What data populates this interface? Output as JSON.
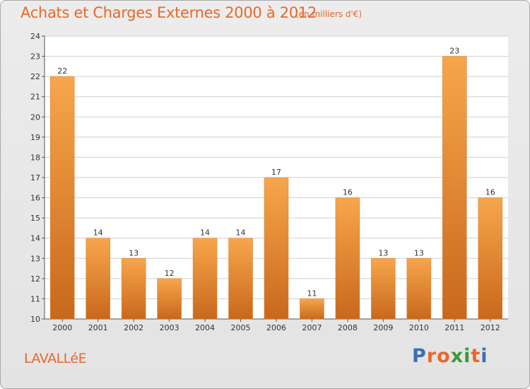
{
  "title": "Achats et Charges Externes 2000 à 2012",
  "subtitle": "(en milliers d'€)",
  "commune": "LAVALLéE",
  "logo": {
    "text": "Proxiti",
    "colors": [
      "#3b6fb6",
      "#e8682b",
      "#e8682b",
      "#3b9a3b",
      "#3b9a3b",
      "#e8682b",
      "#3b6fb6"
    ]
  },
  "colors": {
    "bar_light": "#f7a64c",
    "bar_dark": "#c8681c",
    "grid": "#cfcfcf",
    "axis": "#555555",
    "text": "#333333",
    "accent": "#e8682b"
  },
  "chart_data": {
    "type": "bar",
    "categories": [
      "2000",
      "2001",
      "2002",
      "2003",
      "2004",
      "2005",
      "2006",
      "2007",
      "2008",
      "2009",
      "2010",
      "2011",
      "2012"
    ],
    "values": [
      22,
      14,
      13,
      12,
      14,
      14,
      17,
      11,
      16,
      13,
      13,
      23,
      16
    ],
    "ylim": [
      10,
      24
    ],
    "yticks": [
      10,
      11,
      12,
      13,
      14,
      15,
      16,
      17,
      18,
      19,
      20,
      21,
      22,
      23,
      24
    ],
    "grid": true
  }
}
